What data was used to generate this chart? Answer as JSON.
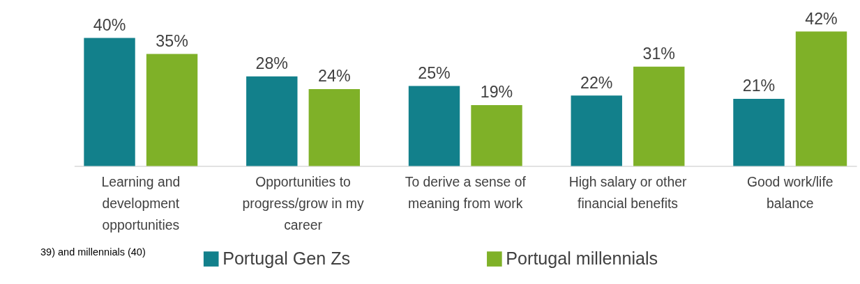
{
  "chart_data": {
    "type": "bar",
    "categories": [
      "Learning and development opportunities",
      "Opportunities to progress/grow in my career",
      "To derive a sense of meaning from work",
      "High salary or other financial benefits",
      "Good work/life balance"
    ],
    "series": [
      {
        "name": "Portugal Gen Zs",
        "color": "#12808b",
        "values": [
          40,
          28,
          25,
          22,
          21
        ],
        "value_labels": [
          "40%",
          "28%",
          "25%",
          "22%",
          "21%"
        ]
      },
      {
        "name": "Portugal millennials",
        "color": "#7fb128",
        "values": [
          35,
          24,
          19,
          31,
          42
        ],
        "value_labels": [
          "35%",
          "24%",
          "19%",
          "31%",
          "42%"
        ]
      }
    ],
    "legend": "bottom",
    "grid": false,
    "annotations": [
      "39) and millennials (40)"
    ]
  }
}
